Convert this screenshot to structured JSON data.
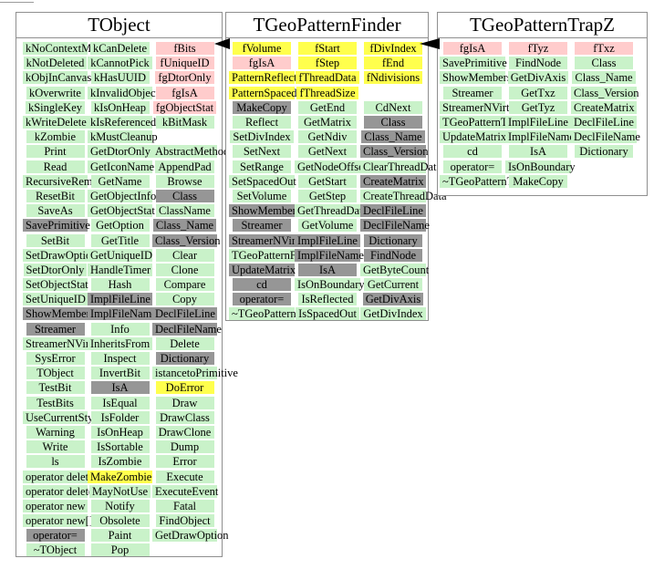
{
  "colors": {
    "green": "#c9f2c9",
    "yellow": "#ffff4d",
    "pink": "#ffcccc",
    "gray": "#969696",
    "panel_border": "#8f8f8f",
    "arrow": "#000000"
  },
  "panels": [
    {
      "title": "TObject",
      "columns": [
        {
          "cells": [
            {
              "t": "kNoContextMenu",
              "c": "green"
            },
            {
              "t": "kNotDeleted",
              "c": "green"
            },
            {
              "t": "kObjInCanvas",
              "c": "green"
            },
            {
              "t": "kOverwrite",
              "c": "green"
            },
            {
              "t": "kSingleKey",
              "c": "green"
            },
            {
              "t": "kWriteDelete",
              "c": "green"
            },
            {
              "t": "kZombie",
              "c": "green"
            },
            {
              "t": "Print",
              "c": "green"
            },
            {
              "t": "Read",
              "c": "green"
            },
            {
              "t": "RecursiveRemove",
              "c": "green"
            },
            {
              "t": "ResetBit",
              "c": "green"
            },
            {
              "t": "SaveAs",
              "c": "green"
            },
            {
              "t": "SavePrimitive",
              "c": "gray"
            },
            {
              "t": "SetBit",
              "c": "green"
            },
            {
              "t": "SetDrawOption",
              "c": "green"
            },
            {
              "t": "SetDtorOnly",
              "c": "green"
            },
            {
              "t": "SetObjectStat",
              "c": "green"
            },
            {
              "t": "SetUniqueID",
              "c": "green"
            },
            {
              "t": "ShowMembers",
              "c": "gray"
            },
            {
              "t": "Streamer",
              "c": "gray"
            },
            {
              "t": "StreamerNVirtual",
              "c": "green"
            },
            {
              "t": "SysError",
              "c": "green"
            },
            {
              "t": "TObject",
              "c": "green"
            },
            {
              "t": "TestBit",
              "c": "green"
            },
            {
              "t": "TestBits",
              "c": "green"
            },
            {
              "t": "UseCurrentStyle",
              "c": "green"
            },
            {
              "t": "Warning",
              "c": "green"
            },
            {
              "t": "Write",
              "c": "green"
            },
            {
              "t": "ls",
              "c": "green"
            },
            {
              "t": "operator delete",
              "c": "green"
            },
            {
              "t": "operator delete[]",
              "c": "green"
            },
            {
              "t": "operator new",
              "c": "green"
            },
            {
              "t": "operator new[]",
              "c": "green"
            },
            {
              "t": "operator=",
              "c": "gray"
            },
            {
              "t": "~TObject",
              "c": "green"
            }
          ]
        },
        {
          "cells": [
            {
              "t": "kCanDelete",
              "c": "green"
            },
            {
              "t": "kCannotPick",
              "c": "green"
            },
            {
              "t": "kHasUUID",
              "c": "green"
            },
            {
              "t": "kInvalidObject",
              "c": "green"
            },
            {
              "t": "kIsOnHeap",
              "c": "green"
            },
            {
              "t": "kIsReferenced",
              "c": "green"
            },
            {
              "t": "kMustCleanup",
              "c": "green"
            },
            {
              "t": "GetDtorOnly",
              "c": "green"
            },
            {
              "t": "GetIconName",
              "c": "green"
            },
            {
              "t": "GetName",
              "c": "green"
            },
            {
              "t": "GetObjectInfo",
              "c": "green"
            },
            {
              "t": "GetObjectStat",
              "c": "green"
            },
            {
              "t": "GetOption",
              "c": "green"
            },
            {
              "t": "GetTitle",
              "c": "green"
            },
            {
              "t": "GetUniqueID",
              "c": "green"
            },
            {
              "t": "HandleTimer",
              "c": "green"
            },
            {
              "t": "Hash",
              "c": "green"
            },
            {
              "t": "ImplFileLine",
              "c": "gray"
            },
            {
              "t": "ImplFileName",
              "c": "gray"
            },
            {
              "t": "Info",
              "c": "green"
            },
            {
              "t": "InheritsFrom",
              "c": "green"
            },
            {
              "t": "Inspect",
              "c": "green"
            },
            {
              "t": "InvertBit",
              "c": "green"
            },
            {
              "t": "IsA",
              "c": "gray"
            },
            {
              "t": "IsEqual",
              "c": "green"
            },
            {
              "t": "IsFolder",
              "c": "green"
            },
            {
              "t": "IsOnHeap",
              "c": "green"
            },
            {
              "t": "IsSortable",
              "c": "green"
            },
            {
              "t": "IsZombie",
              "c": "green"
            },
            {
              "t": "MakeZombie",
              "c": "yellow"
            },
            {
              "t": "MayNotUse",
              "c": "green"
            },
            {
              "t": "Notify",
              "c": "green"
            },
            {
              "t": "Obsolete",
              "c": "green"
            },
            {
              "t": "Paint",
              "c": "green"
            },
            {
              "t": "Pop",
              "c": "green"
            }
          ]
        },
        {
          "cells": [
            {
              "t": "fBits",
              "c": "pink"
            },
            {
              "t": "fUniqueID",
              "c": "pink"
            },
            {
              "t": "fgDtorOnly",
              "c": "pink"
            },
            {
              "t": "fgIsA",
              "c": "pink"
            },
            {
              "t": "fgObjectStat",
              "c": "pink"
            },
            {
              "t": "kBitMask",
              "c": "green"
            },
            null,
            {
              "t": "AbstractMethod",
              "c": "green"
            },
            {
              "t": "AppendPad",
              "c": "green"
            },
            {
              "t": "Browse",
              "c": "green"
            },
            {
              "t": "Class",
              "c": "gray"
            },
            {
              "t": "ClassName",
              "c": "green"
            },
            {
              "t": "Class_Name",
              "c": "gray"
            },
            {
              "t": "Class_Version",
              "c": "gray"
            },
            {
              "t": "Clear",
              "c": "green"
            },
            {
              "t": "Clone",
              "c": "green"
            },
            {
              "t": "Compare",
              "c": "green"
            },
            {
              "t": "Copy",
              "c": "green"
            },
            {
              "t": "DeclFileLine",
              "c": "gray"
            },
            {
              "t": "DeclFileName",
              "c": "gray"
            },
            {
              "t": "Delete",
              "c": "green"
            },
            {
              "t": "Dictionary",
              "c": "gray"
            },
            {
              "t": "istancetoPrimitive",
              "c": "green"
            },
            {
              "t": "DoError",
              "c": "yellow"
            },
            {
              "t": "Draw",
              "c": "green"
            },
            {
              "t": "DrawClass",
              "c": "green"
            },
            {
              "t": "DrawClone",
              "c": "green"
            },
            {
              "t": "Dump",
              "c": "green"
            },
            {
              "t": "Error",
              "c": "green"
            },
            {
              "t": "Execute",
              "c": "green"
            },
            {
              "t": "ExecuteEvent",
              "c": "green"
            },
            {
              "t": "Fatal",
              "c": "green"
            },
            {
              "t": "FindObject",
              "c": "green"
            },
            {
              "t": "GetDrawOption",
              "c": "green"
            },
            null
          ]
        }
      ]
    },
    {
      "title": "TGeoPatternFinder",
      "columns": [
        {
          "cells": [
            {
              "t": "fVolume",
              "c": "yellow"
            },
            {
              "t": "fgIsA",
              "c": "pink"
            },
            {
              "t": "PatternReflected",
              "c": "yellow"
            },
            {
              "t": "PatternSpacedOut",
              "c": "yellow"
            },
            {
              "t": "MakeCopy",
              "c": "gray"
            },
            {
              "t": "Reflect",
              "c": "green"
            },
            {
              "t": "SetDivIndex",
              "c": "green"
            },
            {
              "t": "SetNext",
              "c": "green"
            },
            {
              "t": "SetRange",
              "c": "green"
            },
            {
              "t": "SetSpacedOut",
              "c": "green"
            },
            {
              "t": "SetVolume",
              "c": "green"
            },
            {
              "t": "ShowMembers",
              "c": "gray"
            },
            {
              "t": "Streamer",
              "c": "gray"
            },
            {
              "t": "StreamerNVirtual",
              "c": "gray"
            },
            {
              "t": "TGeoPatternFinder",
              "c": "green"
            },
            {
              "t": "UpdateMatrix",
              "c": "gray"
            },
            {
              "t": "cd",
              "c": "gray"
            },
            {
              "t": "operator=",
              "c": "gray"
            },
            {
              "t": "~TGeoPatternFinder",
              "c": "green"
            }
          ]
        },
        {
          "cells": [
            {
              "t": "fStart",
              "c": "yellow"
            },
            {
              "t": "fStep",
              "c": "yellow"
            },
            {
              "t": "fThreadData",
              "c": "yellow"
            },
            {
              "t": "fThreadSize",
              "c": "yellow"
            },
            {
              "t": "GetEnd",
              "c": "green"
            },
            {
              "t": "GetMatrix",
              "c": "green"
            },
            {
              "t": "GetNdiv",
              "c": "green"
            },
            {
              "t": "GetNext",
              "c": "green"
            },
            {
              "t": "GetNodeOffset",
              "c": "green"
            },
            {
              "t": "GetStart",
              "c": "green"
            },
            {
              "t": "GetStep",
              "c": "green"
            },
            {
              "t": "GetThreadData",
              "c": "green"
            },
            {
              "t": "GetVolume",
              "c": "green"
            },
            {
              "t": "ImplFileLine",
              "c": "gray"
            },
            {
              "t": "ImplFileName",
              "c": "gray"
            },
            {
              "t": "IsA",
              "c": "gray"
            },
            {
              "t": "IsOnBoundary",
              "c": "green"
            },
            {
              "t": "IsReflected",
              "c": "green"
            },
            {
              "t": "IsSpacedOut",
              "c": "green"
            }
          ]
        },
        {
          "cells": [
            {
              "t": "fDivIndex",
              "c": "yellow"
            },
            {
              "t": "fEnd",
              "c": "yellow"
            },
            {
              "t": "fNdivisions",
              "c": "yellow"
            },
            null,
            {
              "t": "CdNext",
              "c": "green"
            },
            {
              "t": "Class",
              "c": "gray"
            },
            {
              "t": "Class_Name",
              "c": "gray"
            },
            {
              "t": "Class_Version",
              "c": "gray"
            },
            {
              "t": "ClearThreadData",
              "c": "green"
            },
            {
              "t": "CreateMatrix",
              "c": "gray"
            },
            {
              "t": "CreateThreadData",
              "c": "green"
            },
            {
              "t": "DeclFileLine",
              "c": "gray"
            },
            {
              "t": "DeclFileName",
              "c": "gray"
            },
            {
              "t": "Dictionary",
              "c": "gray"
            },
            {
              "t": "FindNode",
              "c": "gray"
            },
            {
              "t": "GetByteCount",
              "c": "green"
            },
            {
              "t": "GetCurrent",
              "c": "green"
            },
            {
              "t": "GetDivAxis",
              "c": "gray"
            },
            {
              "t": "GetDivIndex",
              "c": "green"
            }
          ]
        }
      ]
    },
    {
      "title": "TGeoPatternTrapZ",
      "columns": [
        {
          "cells": [
            {
              "t": "fgIsA",
              "c": "pink"
            },
            {
              "t": "SavePrimitive",
              "c": "green"
            },
            {
              "t": "ShowMembers",
              "c": "green"
            },
            {
              "t": "Streamer",
              "c": "green"
            },
            {
              "t": "StreamerNVirtual",
              "c": "green"
            },
            {
              "t": "TGeoPatternTrapZ",
              "c": "green"
            },
            {
              "t": "UpdateMatrix",
              "c": "green"
            },
            {
              "t": "cd",
              "c": "green"
            },
            {
              "t": "operator=",
              "c": "green"
            },
            {
              "t": "~TGeoPatternTrapZ",
              "c": "green"
            }
          ]
        },
        {
          "cells": [
            {
              "t": "fTyz",
              "c": "pink"
            },
            {
              "t": "FindNode",
              "c": "green"
            },
            {
              "t": "GetDivAxis",
              "c": "green"
            },
            {
              "t": "GetTxz",
              "c": "green"
            },
            {
              "t": "GetTyz",
              "c": "green"
            },
            {
              "t": "ImplFileLine",
              "c": "green"
            },
            {
              "t": "ImplFileName",
              "c": "green"
            },
            {
              "t": "IsA",
              "c": "green"
            },
            {
              "t": "IsOnBoundary",
              "c": "green"
            },
            {
              "t": "MakeCopy",
              "c": "green"
            }
          ]
        },
        {
          "cells": [
            {
              "t": "fTxz",
              "c": "pink"
            },
            {
              "t": "Class",
              "c": "green"
            },
            {
              "t": "Class_Name",
              "c": "green"
            },
            {
              "t": "Class_Version",
              "c": "green"
            },
            {
              "t": "CreateMatrix",
              "c": "green"
            },
            {
              "t": "DeclFileLine",
              "c": "green"
            },
            {
              "t": "DeclFileName",
              "c": "green"
            },
            {
              "t": "Dictionary",
              "c": "green"
            },
            null,
            null
          ]
        }
      ]
    }
  ]
}
